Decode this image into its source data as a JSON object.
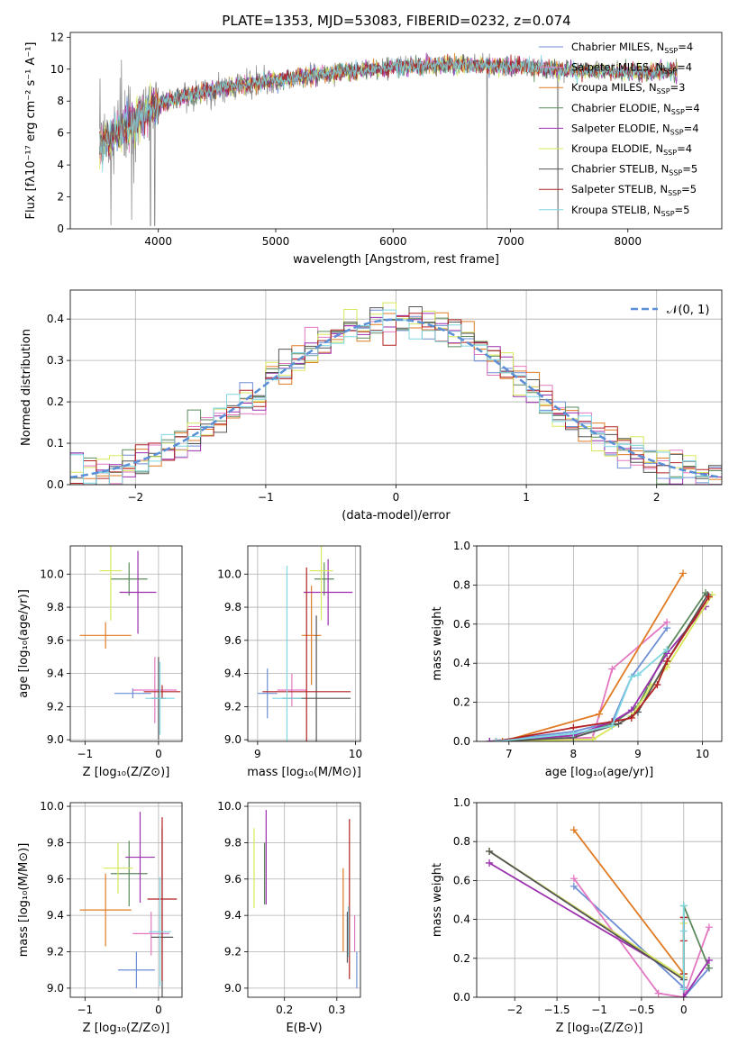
{
  "figure": {
    "suptitle": "PLATE=1353, MJD=53083, FIBERID=0232, z=0.074"
  },
  "colors": {
    "series": [
      "#6c8ed4",
      "#e377c2",
      "#e07b24",
      "#5c8a5c",
      "#9b2fae",
      "#d8e85a",
      "#555555",
      "#b22222",
      "#7fd6e0"
    ],
    "data_spectrum": "#808080",
    "normal_curve": "#5b8fd6"
  },
  "chart_data": [
    {
      "id": "spectrum",
      "type": "line",
      "xlabel": "wavelength [Angstrom, rest frame]",
      "ylabel": "Flux [fλ10⁻¹⁷ erg cm⁻² s⁻¹ A⁻¹]",
      "xlim": [
        3250,
        8800
      ],
      "ylim": [
        0,
        12.3
      ],
      "xticks": [
        4000,
        5000,
        6000,
        7000,
        8000
      ],
      "yticks": [
        0,
        2,
        4,
        6,
        8,
        10,
        12
      ],
      "grid": false,
      "legend": "top-right",
      "legend_entries": [
        {
          "label": "Chabrier MILES, N",
          "sub": "SSP",
          "suffix": "=4"
        },
        {
          "label": "Salpeter MILES, N",
          "sub": "SSP",
          "suffix": "=4"
        },
        {
          "label": "Kroupa MILES, N",
          "sub": "SSP",
          "suffix": "=3"
        },
        {
          "label": "Chabrier ELODIE, N",
          "sub": "SSP",
          "suffix": "=4"
        },
        {
          "label": "Salpeter ELODIE, N",
          "sub": "SSP",
          "suffix": "=4"
        },
        {
          "label": "Kroupa ELODIE, N",
          "sub": "SSP",
          "suffix": "=4"
        },
        {
          "label": "Chabrier STELIB, N",
          "sub": "SSP",
          "suffix": "=5"
        },
        {
          "label": "Salpeter STELIB, N",
          "sub": "SSP",
          "suffix": "=5"
        },
        {
          "label": "Kroupa STELIB, N",
          "sub": "SSP",
          "suffix": "=5"
        }
      ],
      "continuum": [
        [
          3500,
          5.2
        ],
        [
          3650,
          6.0
        ],
        [
          3800,
          6.9
        ],
        [
          3950,
          7.6
        ],
        [
          4100,
          8.0
        ],
        [
          4300,
          8.5
        ],
        [
          4600,
          8.9
        ],
        [
          5000,
          9.3
        ],
        [
          5500,
          9.8
        ],
        [
          6000,
          10.1
        ],
        [
          6500,
          10.3
        ],
        [
          7000,
          10.2
        ],
        [
          7400,
          10.0
        ],
        [
          8000,
          9.8
        ],
        [
          8400,
          9.9
        ]
      ]
    },
    {
      "id": "residuals",
      "type": "bar",
      "xlabel": "(data-model)/error",
      "ylabel": "Normed distribution",
      "xlim": [
        -2.5,
        2.5
      ],
      "ylim": [
        0,
        0.47
      ],
      "xticks": [
        -2,
        -1,
        0,
        1,
        2
      ],
      "yticks": [
        0.0,
        0.1,
        0.2,
        0.3,
        0.4
      ],
      "grid": true,
      "legend": "top-right",
      "legend_label": "𝒩(0, 1)",
      "hist_range": [
        -2.5,
        2.5
      ],
      "n_bins": 50
    },
    {
      "id": "age-Z",
      "type": "scatter",
      "xlabel": "Z [log₁₀(Z/Z⊙)]",
      "ylabel": "age  [log₁₀(age/yr)]",
      "xlim": [
        -1.2,
        0.32
      ],
      "ylim": [
        8.99,
        10.17
      ],
      "xticks": [
        -1,
        0
      ],
      "yticks": [
        9.0,
        9.2,
        9.4,
        9.6,
        9.8,
        10.0
      ],
      "grid": true,
      "points": [
        {
          "s": 0,
          "x": -0.35,
          "xerr": 0.25,
          "y": 9.28,
          "yerr": 0.03
        },
        {
          "s": 1,
          "x": -0.05,
          "xerr": 0.3,
          "y": 9.3,
          "yerr": 0.2
        },
        {
          "s": 2,
          "x": -0.72,
          "xerr": 0.35,
          "y": 9.63,
          "yerr": 0.08
        },
        {
          "s": 3,
          "x": -0.4,
          "xerr": 0.25,
          "y": 9.97,
          "yerr": 0.1
        },
        {
          "s": 4,
          "x": -0.28,
          "xerr": 0.25,
          "y": 9.89,
          "yerr": 0.25
        },
        {
          "s": 5,
          "x": -0.65,
          "xerr": 0.15,
          "y": 10.02,
          "yerr": 0.3
        },
        {
          "s": 6,
          "x": 0.0,
          "xerr": 0.1,
          "y": 9.25,
          "yerr": 0.25
        },
        {
          "s": 7,
          "x": 0.05,
          "xerr": 0.25,
          "y": 9.29,
          "yerr": 0.04
        },
        {
          "s": 8,
          "x": 0.02,
          "xerr": 0.2,
          "y": 9.25,
          "yerr": 0.22
        }
      ]
    },
    {
      "id": "age-mass",
      "type": "scatter",
      "xlabel": "mass [log₁₀(M/M⊙)]",
      "ylabel": "",
      "xlim": [
        8.9,
        10.05
      ],
      "ylim": [
        8.99,
        10.17
      ],
      "xticks": [
        9,
        10
      ],
      "yticks": [
        9.0,
        9.2,
        9.4,
        9.6,
        9.8,
        10.0
      ],
      "grid": true,
      "points": [
        {
          "s": 0,
          "x": 9.1,
          "xerr": 0.1,
          "y": 9.28,
          "yerr": 0.15
        },
        {
          "s": 1,
          "x": 9.35,
          "xerr": 0.15,
          "y": 9.3,
          "yerr": 0.1
        },
        {
          "s": 2,
          "x": 9.55,
          "xerr": 0.1,
          "y": 9.63,
          "yerr": 0.3
        },
        {
          "s": 3,
          "x": 9.68,
          "xerr": 0.1,
          "y": 9.97,
          "yerr": 0.1
        },
        {
          "s": 4,
          "x": 9.72,
          "xerr": 0.25,
          "y": 9.89,
          "yerr": 0.2
        },
        {
          "s": 5,
          "x": 9.65,
          "xerr": 0.12,
          "y": 10.02,
          "yerr": 0.3
        },
        {
          "s": 6,
          "x": 9.6,
          "xerr": 0.35,
          "y": 9.25,
          "yerr": 0.5
        },
        {
          "s": 7,
          "x": 9.5,
          "xerr": 0.45,
          "y": 9.29,
          "yerr": 0.75
        },
        {
          "s": 8,
          "x": 9.3,
          "xerr": 0.15,
          "y": 9.25,
          "yerr": 0.8
        }
      ]
    },
    {
      "id": "mw-age",
      "type": "line",
      "xlabel": "age  [log₁₀(age/yr)]",
      "ylabel": "mass weight",
      "xlim": [
        6.5,
        10.3
      ],
      "ylim": [
        0,
        1.0
      ],
      "xticks": [
        7,
        8,
        9,
        10
      ],
      "yticks": [
        0.0,
        0.2,
        0.4,
        0.6,
        0.8,
        1.0
      ],
      "grid": true,
      "series": [
        {
          "s": 0,
          "x": [
            6.7,
            8.0,
            8.6,
            8.9,
            9.45
          ],
          "y": [
            0.0,
            0.05,
            0.1,
            0.33,
            0.58
          ]
        },
        {
          "s": 1,
          "x": [
            6.8,
            8.3,
            8.6,
            9.45
          ],
          "y": [
            0.0,
            0.02,
            0.37,
            0.61
          ]
        },
        {
          "s": 2,
          "x": [
            6.9,
            8.4,
            9.7
          ],
          "y": [
            0.0,
            0.14,
            0.86
          ]
        },
        {
          "s": 3,
          "x": [
            6.7,
            8.0,
            8.6,
            9.0,
            9.45,
            10.05
          ],
          "y": [
            0.0,
            0.03,
            0.09,
            0.18,
            0.47,
            0.76
          ]
        },
        {
          "s": 4,
          "x": [
            6.7,
            8.0,
            8.6,
            8.9,
            9.45,
            10.05
          ],
          "y": [
            0.0,
            0.03,
            0.1,
            0.16,
            0.45,
            0.69
          ]
        },
        {
          "s": 5,
          "x": [
            6.8,
            8.3,
            8.9,
            9.2,
            9.45,
            10.15
          ],
          "y": [
            0.0,
            0.01,
            0.13,
            0.28,
            0.38,
            0.75
          ]
        },
        {
          "s": 6,
          "x": [
            6.8,
            8.0,
            8.7,
            9.0,
            9.45,
            10.08
          ],
          "y": [
            0.0,
            0.02,
            0.09,
            0.15,
            0.41,
            0.75
          ]
        },
        {
          "s": 7,
          "x": [
            6.8,
            8.0,
            8.6,
            8.9,
            9.3,
            9.45,
            10.1
          ],
          "y": [
            0.0,
            0.07,
            0.1,
            0.12,
            0.29,
            0.41,
            0.74
          ]
        },
        {
          "s": 8,
          "x": [
            6.8,
            8.0,
            8.6,
            8.9,
            9.0,
            9.45
          ],
          "y": [
            0.0,
            0.04,
            0.08,
            0.33,
            0.34,
            0.47
          ]
        }
      ]
    },
    {
      "id": "mass-Z",
      "type": "scatter",
      "xlabel": "Z [log₁₀(Z/Z⊙)]",
      "ylabel": "mass [log₁₀(M/M⊙)]",
      "xlim": [
        -1.2,
        0.32
      ],
      "ylim": [
        8.95,
        10.02
      ],
      "xticks": [
        -1,
        0
      ],
      "yticks": [
        9.0,
        9.2,
        9.4,
        9.6,
        9.8,
        10.0
      ],
      "grid": true,
      "points": [
        {
          "s": 0,
          "x": -0.3,
          "xerr": 0.25,
          "y": 9.1,
          "yerr": 0.1
        },
        {
          "s": 1,
          "x": -0.1,
          "xerr": 0.25,
          "y": 9.3,
          "yerr": 0.12
        },
        {
          "s": 2,
          "x": -0.72,
          "xerr": 0.35,
          "y": 9.43,
          "yerr": 0.2
        },
        {
          "s": 3,
          "x": -0.4,
          "xerr": 0.25,
          "y": 9.63,
          "yerr": 0.18
        },
        {
          "s": 4,
          "x": -0.25,
          "xerr": 0.2,
          "y": 9.72,
          "yerr": 0.25
        },
        {
          "s": 5,
          "x": -0.55,
          "xerr": 0.2,
          "y": 9.66,
          "yerr": 0.14
        },
        {
          "s": 6,
          "x": 0.05,
          "xerr": 0.15,
          "y": 9.28,
          "yerr": 0.6
        },
        {
          "s": 7,
          "x": 0.05,
          "xerr": 0.2,
          "y": 9.49,
          "yerr": 0.45
        },
        {
          "s": 8,
          "x": 0.02,
          "xerr": 0.15,
          "y": 9.31,
          "yerr": 0.3
        }
      ]
    },
    {
      "id": "mass-ebv",
      "type": "scatter",
      "xlabel": "E(B-V)",
      "ylabel": "",
      "xlim": [
        0.13,
        0.345
      ],
      "ylim": [
        8.95,
        10.02
      ],
      "xticks": [
        0.2,
        0.3
      ],
      "yticks": [
        9.0,
        9.2,
        9.4,
        9.6,
        9.8,
        10.0
      ],
      "grid": true,
      "points": [
        {
          "s": 0,
          "x": 0.338,
          "y": 9.1,
          "yerr": 0.1
        },
        {
          "s": 1,
          "x": 0.334,
          "y": 9.3,
          "yerr": 0.1
        },
        {
          "s": 2,
          "x": 0.312,
          "y": 9.43,
          "yerr": 0.23
        },
        {
          "s": 3,
          "x": 0.162,
          "y": 9.63,
          "yerr": 0.17
        },
        {
          "s": 4,
          "x": 0.165,
          "y": 9.72,
          "yerr": 0.26
        },
        {
          "s": 5,
          "x": 0.142,
          "y": 9.66,
          "yerr": 0.22
        },
        {
          "s": 6,
          "x": 0.32,
          "y": 9.28,
          "yerr": 0.14
        },
        {
          "s": 7,
          "x": 0.324,
          "y": 9.49,
          "yerr": 0.44
        },
        {
          "s": 8,
          "x": 0.322,
          "y": 9.31,
          "yerr": 0.14
        }
      ]
    },
    {
      "id": "mw-Z",
      "type": "line",
      "xlabel": "Z [log₁₀(Z/Z⊙)]",
      "ylabel": "mass weight",
      "xlim": [
        -2.45,
        0.45
      ],
      "ylim": [
        0,
        1.0
      ],
      "xticks": [
        -2.0,
        -1.5,
        -1.0,
        -0.5,
        0.0
      ],
      "yticks": [
        0.0,
        0.2,
        0.4,
        0.6,
        0.8,
        1.0
      ],
      "grid": true,
      "series": [
        {
          "s": 0,
          "x": [
            -1.3,
            0.0,
            0.0,
            0.3
          ],
          "y": [
            0.57,
            0.05,
            0.0,
            0.15
          ]
        },
        {
          "s": 1,
          "x": [
            -1.3,
            -0.3,
            0.0,
            0.3
          ],
          "y": [
            0.61,
            0.02,
            0.0,
            0.36
          ]
        },
        {
          "s": 2,
          "x": [
            -1.3,
            0.0,
            0.0
          ],
          "y": [
            0.86,
            0.12,
            0.0
          ]
        },
        {
          "s": 3,
          "x": [
            -2.3,
            0.0,
            0.0,
            0.3
          ],
          "y": [
            0.75,
            0.1,
            0.47,
            0.15
          ]
        },
        {
          "s": 4,
          "x": [
            -2.3,
            0.0,
            0.0,
            0.3
          ],
          "y": [
            0.69,
            0.1,
            0.0,
            0.19
          ]
        },
        {
          "s": 5,
          "x": [
            -2.3,
            0.0,
            0.0
          ],
          "y": [
            0.75,
            0.1,
            0.38
          ]
        },
        {
          "s": 6,
          "x": [
            -2.3,
            0.0,
            0.0
          ],
          "y": [
            0.75,
            0.09,
            0.41
          ]
        },
        {
          "s": 7,
          "x": [
            0.0,
            0.0,
            0.0
          ],
          "y": [
            0.12,
            0.29,
            0.41
          ]
        },
        {
          "s": 8,
          "x": [
            0.0,
            0.0,
            0.0
          ],
          "y": [
            0.04,
            0.34,
            0.47
          ]
        }
      ]
    }
  ]
}
